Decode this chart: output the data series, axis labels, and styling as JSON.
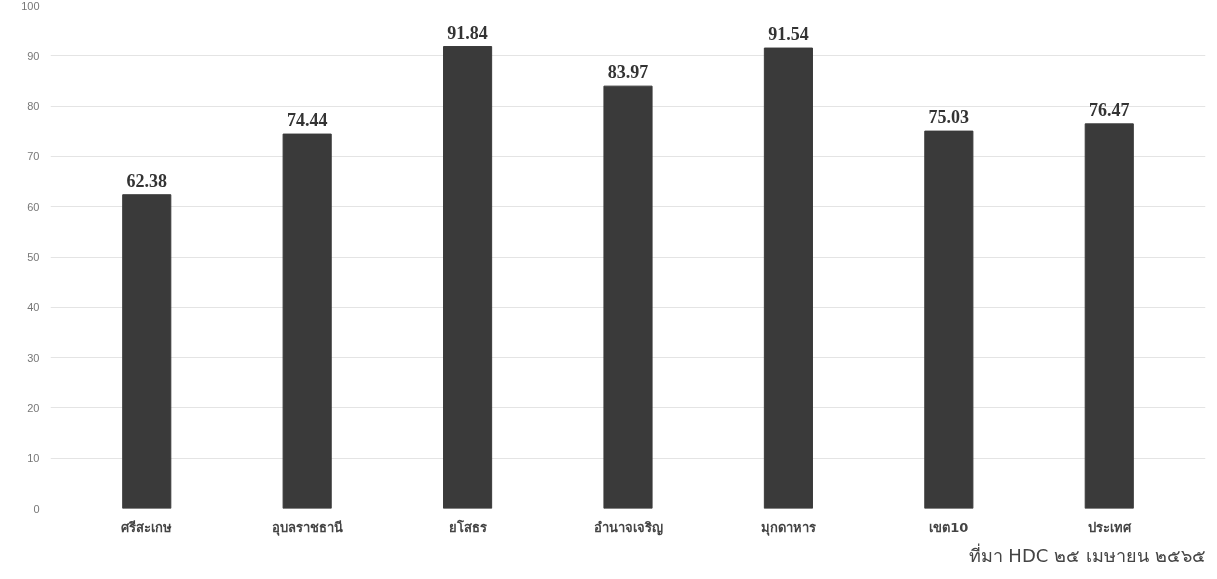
{
  "chart_data": {
    "type": "bar",
    "categories": [
      "ศรีสะเกษ",
      "อุบลราชธานี",
      "ยโสธร",
      "อำนาจเจริญ",
      "มุกดาหาร",
      "เขต10",
      "ประเทศ"
    ],
    "values": [
      62.38,
      74.44,
      91.84,
      83.97,
      91.54,
      75.03,
      76.47
    ],
    "color": "#3a3a3a",
    "ylim": [
      0,
      100
    ],
    "yticks": [
      0,
      10,
      20,
      30,
      40,
      50,
      60,
      70,
      80,
      90,
      100
    ],
    "grid": "y",
    "data_labels": true,
    "annotations": [
      "ที่มา HDC ๒๕ เมษายน ๒๕๖๕"
    ]
  }
}
